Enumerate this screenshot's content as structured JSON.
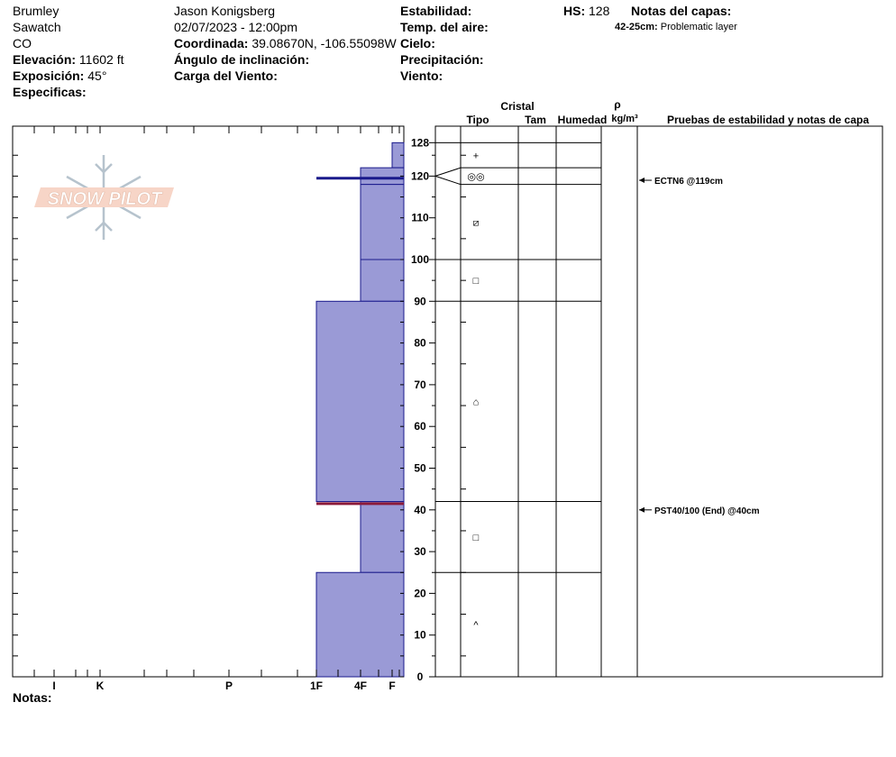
{
  "site": {
    "name": "Brumley",
    "range": "Sawatch",
    "state": "CO",
    "elevation_label": "Elevación:",
    "elevation": "11602 ft",
    "aspect_label": "Exposición:",
    "aspect": "45°",
    "specifics_label": "Especificas:"
  },
  "observer": {
    "name": "Jason Konigsberg",
    "datetime": "02/07/2023 - 12:00pm",
    "coord_label": "Coordinada:",
    "coord": "39.08670N, -106.55098W",
    "incline_label": "Ángulo de inclinación:",
    "wind_load_label": "Carga del Viento:"
  },
  "conditions": {
    "stability_label": "Estabilidad:",
    "air_temp_label": "Temp. del aire:",
    "sky_label": "Cielo:",
    "precip_label": "Precipitación:",
    "wind_label": "Viento:",
    "hs_label": "HS:",
    "hs_value": "128",
    "layer_notes_title": "Notas del capas:",
    "layer_note_range": "42-25cm:",
    "layer_note_text": "Problematic layer"
  },
  "logo": {
    "text": "SNOW PILOT"
  },
  "notes_label": "Notas:",
  "columns": {
    "cristal": "Cristal",
    "tipo": "Tipo",
    "tam": "Tam",
    "humedad": "Humedad",
    "rho": "ρ",
    "density_unit": "kg/m³",
    "tests": "Pruebas de estabilidad y notas de capa"
  },
  "hardness_axis": [
    "I",
    "K",
    "P",
    "1F",
    "4F",
    "F"
  ],
  "chart_data": {
    "type": "snow_profile",
    "height_unit": "cm",
    "height_range": [
      0,
      128
    ],
    "height_ticks": [
      0,
      10,
      20,
      30,
      40,
      50,
      60,
      70,
      80,
      90,
      100,
      110,
      120,
      128
    ],
    "hardness_scale": [
      "F",
      "4F",
      "1F",
      "P",
      "K",
      "I"
    ],
    "layers": [
      {
        "top": 128,
        "bottom": 122,
        "hardness": "F",
        "grain": "+"
      },
      {
        "top": 122,
        "bottom": 118,
        "hardness": "4F",
        "grain": "◎◎"
      },
      {
        "top": 118,
        "bottom": 100,
        "hardness": "4F",
        "grain": "⧄"
      },
      {
        "top": 100,
        "bottom": 90,
        "hardness": "4F",
        "grain": "□"
      },
      {
        "top": 90,
        "bottom": 42,
        "hardness": "1F",
        "grain": "⌂"
      },
      {
        "top": 42,
        "bottom": 25,
        "hardness": "4F",
        "grain": "□"
      },
      {
        "top": 25,
        "bottom": 0,
        "hardness": "1F",
        "grain": "^"
      }
    ],
    "thin_layers": [
      {
        "height": 119.5,
        "hardness": "1F",
        "color": "#1a1a8c"
      },
      {
        "height": 41.5,
        "hardness": "1F",
        "color": "#8b1a3a"
      }
    ],
    "tests": [
      {
        "height": 119,
        "label": "ECTN6 @119cm"
      },
      {
        "height": 40,
        "label": "PST40/100 (End) @40cm"
      }
    ],
    "colors": {
      "fill": "#9a9ad6",
      "edge": "#1a1a8c",
      "weak": "#8b1a3a"
    }
  }
}
